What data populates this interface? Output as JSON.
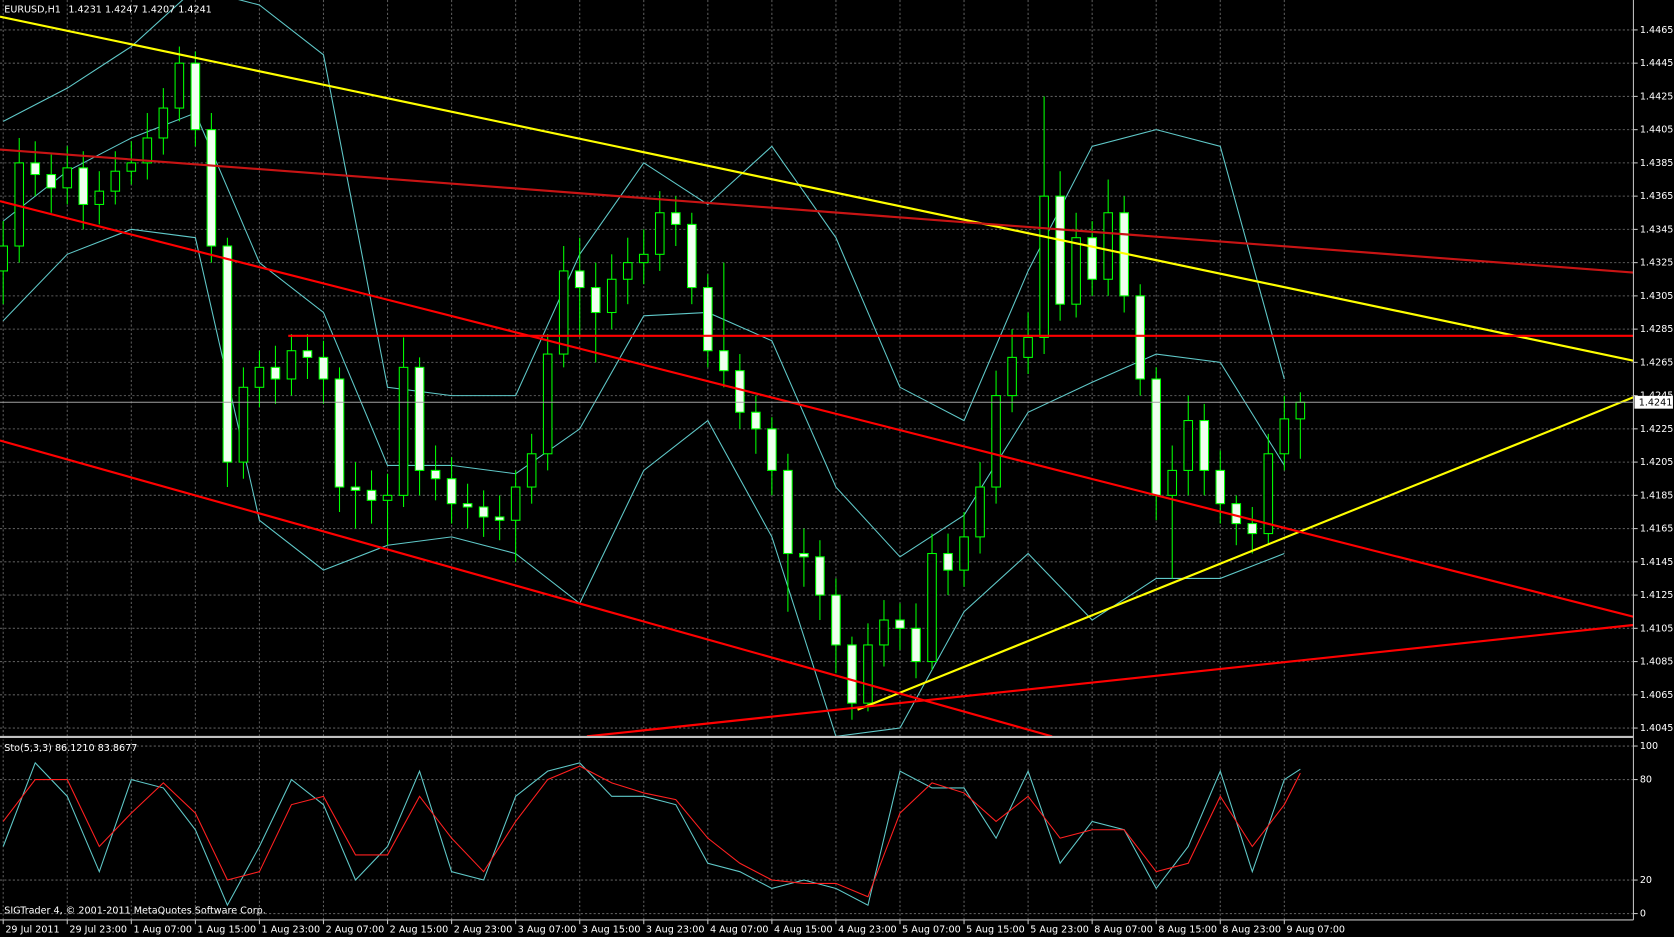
{
  "chart_data": [
    {
      "type": "candlestick",
      "title": "EURUSD,H1",
      "subtitle": "1.4231 1.4247 1.4207 1.4241",
      "last_price": 1.4241,
      "xlim": [
        -0.4,
        203.6
      ],
      "ylim": [
        1.404,
        1.4483
      ],
      "color": "#00ff00",
      "grid": true,
      "yticks": [
        1.4045,
        1.4065,
        1.4085,
        1.4105,
        1.4125,
        1.4145,
        1.4165,
        1.4185,
        1.4205,
        1.4225,
        1.4245,
        1.4265,
        1.4285,
        1.4305,
        1.4325,
        1.4345,
        1.4365,
        1.4385,
        1.4405,
        1.4425,
        1.4445,
        1.4465
      ],
      "xticks": [
        {
          "value": 0,
          "label": "29 Jul 2011"
        },
        {
          "value": 8,
          "label": "29 Jul 23:00"
        },
        {
          "value": 16,
          "label": "1 Aug 07:00"
        },
        {
          "value": 24,
          "label": "1 Aug 15:00"
        },
        {
          "value": 32,
          "label": "1 Aug 23:00"
        },
        {
          "value": 40,
          "label": "2 Aug 07:00"
        },
        {
          "value": 48,
          "label": "2 Aug 15:00"
        },
        {
          "value": 56,
          "label": "2 Aug 23:00"
        },
        {
          "value": 64,
          "label": "3 Aug 07:00"
        },
        {
          "value": 72,
          "label": "3 Aug 15:00"
        },
        {
          "value": 80,
          "label": "3 Aug 23:00"
        },
        {
          "value": 88,
          "label": "4 Aug 07:00"
        },
        {
          "value": 96,
          "label": "4 Aug 15:00"
        },
        {
          "value": 104,
          "label": "4 Aug 23:00"
        },
        {
          "value": 112,
          "label": "5 Aug 07:00"
        },
        {
          "value": 120,
          "label": "5 Aug 15:00"
        },
        {
          "value": 128,
          "label": "5 Aug 23:00"
        },
        {
          "value": 136,
          "label": "8 Aug 07:00"
        },
        {
          "value": 144,
          "label": "8 Aug 15:00"
        },
        {
          "value": 152,
          "label": "8 Aug 23:00"
        },
        {
          "value": 160,
          "label": "9 Aug 07:00"
        }
      ],
      "x": [
        0,
        2,
        4,
        6,
        8,
        10,
        12,
        14,
        16,
        18,
        20,
        22,
        24,
        26,
        28,
        30,
        32,
        34,
        36,
        38,
        40,
        42,
        44,
        46,
        48,
        50,
        52,
        54,
        56,
        58,
        60,
        62,
        64,
        66,
        68,
        70,
        72,
        74,
        76,
        78,
        80,
        82,
        84,
        86,
        88,
        90,
        92,
        94,
        96,
        98,
        100,
        102,
        104,
        106,
        108,
        110,
        112,
        114,
        116,
        118,
        120,
        122,
        124,
        126,
        128,
        130,
        132,
        134,
        136,
        138,
        140,
        142,
        144,
        146,
        148,
        150,
        152,
        154,
        156,
        158,
        160,
        162
      ],
      "open": [
        1.432,
        1.4335,
        1.4385,
        1.4378,
        1.437,
        1.4382,
        1.436,
        1.4368,
        1.438,
        1.4385,
        1.44,
        1.4418,
        1.4445,
        1.4405,
        1.4335,
        1.4205,
        1.425,
        1.4262,
        1.4255,
        1.4272,
        1.4268,
        1.4255,
        1.419,
        1.4188,
        1.4182,
        1.4185,
        1.4262,
        1.42,
        1.4195,
        1.418,
        1.4178,
        1.4172,
        1.417,
        1.419,
        1.421,
        1.427,
        1.432,
        1.431,
        1.4295,
        1.4315,
        1.4325,
        1.433,
        1.4355,
        1.4348,
        1.431,
        1.4272,
        1.426,
        1.4235,
        1.4225,
        1.42,
        1.415,
        1.4148,
        1.4125,
        1.4095,
        1.406,
        1.4095,
        1.411,
        1.4105,
        1.4085,
        1.415,
        1.414,
        1.416,
        1.419,
        1.4245,
        1.4268,
        1.428,
        1.4365,
        1.43,
        1.434,
        1.4315,
        1.4355,
        1.4305,
        1.4255,
        1.4185,
        1.42,
        1.423,
        1.42,
        1.418,
        1.4168,
        1.4162,
        1.421,
        1.4231
      ],
      "high": [
        1.435,
        1.44,
        1.4398,
        1.439,
        1.4395,
        1.4392,
        1.438,
        1.4392,
        1.4398,
        1.4415,
        1.443,
        1.4455,
        1.4452,
        1.4415,
        1.434,
        1.4262,
        1.4272,
        1.4275,
        1.4282,
        1.4282,
        1.4278,
        1.4262,
        1.4205,
        1.42,
        1.4198,
        1.428,
        1.4268,
        1.4215,
        1.4208,
        1.4192,
        1.4188,
        1.4185,
        1.42,
        1.4222,
        1.4282,
        1.4335,
        1.434,
        1.4325,
        1.433,
        1.434,
        1.4345,
        1.4368,
        1.4365,
        1.4355,
        1.4318,
        1.4325,
        1.427,
        1.4245,
        1.4232,
        1.421,
        1.4165,
        1.4158,
        1.4135,
        1.41,
        1.4108,
        1.4122,
        1.412,
        1.412,
        1.4162,
        1.4162,
        1.4175,
        1.4205,
        1.426,
        1.4285,
        1.4295,
        1.4425,
        1.438,
        1.4355,
        1.435,
        1.4375,
        1.4365,
        1.4312,
        1.4262,
        1.4215,
        1.4245,
        1.424,
        1.4212,
        1.4185,
        1.4178,
        1.4222,
        1.4245,
        1.4247
      ],
      "low": [
        1.43,
        1.4325,
        1.4365,
        1.4355,
        1.436,
        1.4345,
        1.4348,
        1.436,
        1.4372,
        1.4375,
        1.439,
        1.441,
        1.4395,
        1.4325,
        1.419,
        1.4195,
        1.4238,
        1.424,
        1.4245,
        1.4255,
        1.424,
        1.4175,
        1.4165,
        1.4168,
        1.4155,
        1.4178,
        1.4185,
        1.4182,
        1.4168,
        1.4165,
        1.416,
        1.4158,
        1.4145,
        1.418,
        1.42,
        1.4262,
        1.428,
        1.4265,
        1.4285,
        1.43,
        1.4312,
        1.432,
        1.4335,
        1.43,
        1.4262,
        1.425,
        1.4225,
        1.421,
        1.4185,
        1.4115,
        1.413,
        1.411,
        1.4078,
        1.405,
        1.4055,
        1.4082,
        1.4092,
        1.4075,
        1.408,
        1.4125,
        1.413,
        1.415,
        1.418,
        1.4235,
        1.4258,
        1.427,
        1.429,
        1.4292,
        1.4305,
        1.4305,
        1.4295,
        1.4245,
        1.417,
        1.4135,
        1.4185,
        1.4185,
        1.4168,
        1.4155,
        1.415,
        1.4155,
        1.42,
        1.4207
      ],
      "close": [
        1.4335,
        1.4385,
        1.4378,
        1.437,
        1.4382,
        1.436,
        1.4368,
        1.438,
        1.4385,
        1.44,
        1.4418,
        1.4445,
        1.4405,
        1.4335,
        1.4205,
        1.425,
        1.4262,
        1.4255,
        1.4272,
        1.4268,
        1.4255,
        1.419,
        1.4188,
        1.4182,
        1.4185,
        1.4262,
        1.42,
        1.4195,
        1.418,
        1.4178,
        1.4172,
        1.417,
        1.419,
        1.421,
        1.427,
        1.432,
        1.431,
        1.4295,
        1.4315,
        1.4325,
        1.433,
        1.4355,
        1.4348,
        1.431,
        1.4272,
        1.426,
        1.4235,
        1.4225,
        1.42,
        1.415,
        1.4148,
        1.4125,
        1.4095,
        1.406,
        1.4095,
        1.411,
        1.4105,
        1.4085,
        1.415,
        1.414,
        1.416,
        1.419,
        1.4245,
        1.4268,
        1.428,
        1.4365,
        1.43,
        1.434,
        1.4315,
        1.4355,
        1.4305,
        1.4255,
        1.4185,
        1.42,
        1.423,
        1.42,
        1.418,
        1.4168,
        1.4162,
        1.421,
        1.4231,
        1.4241
      ],
      "bollinger": {
        "color": "#5fc8c8",
        "x": [
          0,
          8,
          16,
          24,
          32,
          40,
          48,
          56,
          64,
          72,
          80,
          88,
          96,
          104,
          112,
          120,
          128,
          136,
          144,
          152,
          160
        ],
        "upper": [
          1.441,
          1.443,
          1.4455,
          1.449,
          1.448,
          1.445,
          1.425,
          1.4245,
          1.4245,
          1.433,
          1.4385,
          1.436,
          1.4395,
          1.434,
          1.425,
          1.423,
          1.432,
          1.4395,
          1.4405,
          1.4395,
          1.4255
        ],
        "middle": [
          1.435,
          1.438,
          1.44,
          1.4415,
          1.4325,
          1.4295,
          1.4203,
          1.4203,
          1.4198,
          1.4225,
          1.4293,
          1.4295,
          1.4278,
          1.419,
          1.4148,
          1.4173,
          1.4235,
          1.4253,
          1.427,
          1.4265,
          1.4203
        ],
        "lower": [
          1.429,
          1.433,
          1.4345,
          1.434,
          1.417,
          1.414,
          1.4155,
          1.416,
          1.415,
          1.412,
          1.42,
          1.423,
          1.416,
          1.404,
          1.4045,
          1.4115,
          1.415,
          1.411,
          1.4135,
          1.4135,
          1.415
        ]
      },
      "lines": [
        {
          "color": "#ffff00",
          "x": [
            -0.4,
            203.6
          ],
          "y": [
            1.4473,
            1.4266
          ]
        },
        {
          "color": "#ffff00",
          "x": [
            106.7,
            203.6
          ],
          "y": [
            1.4056,
            1.4244
          ]
        },
        {
          "color": "#ff0000",
          "x": [
            35.6,
            203.6
          ],
          "y": [
            1.4281,
            1.4281
          ]
        },
        {
          "color": "#c81414",
          "x": [
            -0.4,
            203.6
          ],
          "y": [
            1.4393,
            1.4319
          ]
        },
        {
          "color": "#ff0000",
          "x": [
            -0.4,
            203.6
          ],
          "y": [
            1.4362,
            1.4112
          ]
        },
        {
          "color": "#ff0000",
          "x": [
            -0.4,
            131
          ],
          "y": [
            1.4218,
            1.404
          ]
        },
        {
          "color": "#ff0000",
          "x": [
            72.9,
            203.6
          ],
          "y": [
            1.404,
            1.4107
          ]
        }
      ]
    },
    {
      "type": "line",
      "title": "Sto(5,3,3) 86.1210 83.8677",
      "footer": "SIGTrader 4, © 2001-2011 MetaQuotes Software Corp.",
      "xlim": [
        -0.4,
        203.6
      ],
      "ylim": [
        -3.8,
        104.5
      ],
      "yticks": [
        100,
        80,
        20,
        0
      ],
      "grid": true,
      "x": [
        0,
        4,
        8,
        12,
        16,
        20,
        24,
        28,
        32,
        36,
        40,
        44,
        48,
        52,
        56,
        60,
        64,
        68,
        72,
        76,
        80,
        84,
        88,
        92,
        96,
        100,
        104,
        108,
        112,
        116,
        120,
        124,
        128,
        132,
        136,
        140,
        144,
        148,
        152,
        156,
        160,
        162
      ],
      "series": [
        {
          "color": "#5fc8c8",
          "values": [
            40,
            90,
            70,
            25,
            80,
            75,
            50,
            5,
            40,
            80,
            65,
            20,
            40,
            85,
            25,
            20,
            70,
            85,
            90,
            70,
            70,
            65,
            30,
            25,
            15,
            20,
            15,
            5,
            85,
            75,
            75,
            45,
            85,
            30,
            55,
            50,
            15,
            40,
            85,
            25,
            80,
            86.121
          ]
        },
        {
          "color": "#ff2020",
          "values": [
            55,
            80,
            80,
            40,
            60,
            78,
            60,
            20,
            25,
            65,
            70,
            35,
            35,
            70,
            45,
            25,
            55,
            80,
            88,
            78,
            72,
            68,
            45,
            30,
            20,
            18,
            18,
            10,
            60,
            78,
            72,
            55,
            70,
            45,
            50,
            50,
            25,
            30,
            70,
            40,
            65,
            83.8677
          ]
        }
      ]
    }
  ]
}
